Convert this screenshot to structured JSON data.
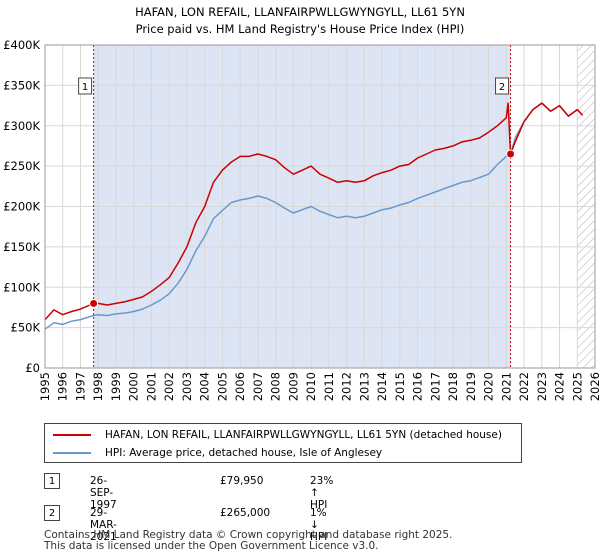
{
  "chart_data": {
    "type": "line",
    "title": "HAFAN, LON REFAIL, LLANFAIRPWLLGWYNGYLL, LL61 5YN",
    "subtitle": "Price paid vs. HM Land Registry's House Price Index (HPI)",
    "xlim": [
      1995,
      2026
    ],
    "ylim": [
      0,
      400000
    ],
    "x_ticks": [
      1995,
      1996,
      1997,
      1998,
      1999,
      2000,
      2001,
      2002,
      2003,
      2004,
      2005,
      2006,
      2007,
      2008,
      2009,
      2010,
      2011,
      2012,
      2013,
      2014,
      2015,
      2016,
      2017,
      2018,
      2019,
      2020,
      2021,
      2022,
      2023,
      2024,
      2025,
      2026
    ],
    "y_ticks": [
      0,
      50000,
      100000,
      150000,
      200000,
      250000,
      300000,
      350000,
      400000
    ],
    "y_tick_labels": [
      "£0",
      "£50K",
      "£100K",
      "£150K",
      "£200K",
      "£250K",
      "£300K",
      "£350K",
      "£400K"
    ],
    "grid": true,
    "shaded_span": [
      1997.74,
      2021.24
    ],
    "hatched_from": 2025.0,
    "series": [
      {
        "name": "HAFAN, LON REFAIL, LLANFAIRPWLLGWYNGYLL, LL61 5YN (detached house)",
        "color": "#cc0000",
        "x": [
          1995.0,
          1995.5,
          1996.0,
          1996.5,
          1997.0,
          1997.74,
          1998.0,
          1998.5,
          1999.0,
          1999.5,
          2000.0,
          2000.5,
          2001.0,
          2001.5,
          2002.0,
          2002.5,
          2003.0,
          2003.5,
          2004.0,
          2004.5,
          2005.0,
          2005.5,
          2006.0,
          2006.5,
          2007.0,
          2007.5,
          2008.0,
          2008.5,
          2009.0,
          2009.5,
          2010.0,
          2010.5,
          2011.0,
          2011.5,
          2012.0,
          2012.5,
          2013.0,
          2013.5,
          2014.0,
          2014.5,
          2015.0,
          2015.5,
          2016.0,
          2016.5,
          2017.0,
          2017.5,
          2018.0,
          2018.5,
          2019.0,
          2019.5,
          2020.0,
          2020.5,
          2021.0,
          2021.1,
          2021.24,
          2021.5,
          2022.0,
          2022.5,
          2023.0,
          2023.5,
          2024.0,
          2024.5,
          2025.0,
          2025.3
        ],
        "values": [
          60000,
          72000,
          66000,
          70000,
          73000,
          79950,
          80000,
          78000,
          80000,
          82000,
          85000,
          88000,
          95000,
          103000,
          112000,
          130000,
          150000,
          180000,
          200000,
          230000,
          245000,
          255000,
          262000,
          262000,
          265000,
          262000,
          258000,
          248000,
          240000,
          245000,
          250000,
          240000,
          235000,
          230000,
          232000,
          230000,
          232000,
          238000,
          242000,
          245000,
          250000,
          252000,
          260000,
          265000,
          270000,
          272000,
          275000,
          280000,
          282000,
          285000,
          292000,
          300000,
          310000,
          328000,
          265000,
          280000,
          305000,
          320000,
          328000,
          318000,
          325000,
          312000,
          320000,
          313000
        ]
      },
      {
        "name": "HPI: Average price, detached house, Isle of Anglesey",
        "color": "#6699cc",
        "x": [
          1995.0,
          1995.5,
          1996.0,
          1996.5,
          1997.0,
          1997.74,
          1998.0,
          1998.5,
          1999.0,
          1999.5,
          2000.0,
          2000.5,
          2001.0,
          2001.5,
          2002.0,
          2002.5,
          2003.0,
          2003.5,
          2004.0,
          2004.5,
          2005.0,
          2005.5,
          2006.0,
          2006.5,
          2007.0,
          2007.5,
          2008.0,
          2008.5,
          2009.0,
          2009.5,
          2010.0,
          2010.5,
          2011.0,
          2011.5,
          2012.0,
          2012.5,
          2013.0,
          2013.5,
          2014.0,
          2014.5,
          2015.0,
          2015.5,
          2016.0,
          2016.5,
          2017.0,
          2017.5,
          2018.0,
          2018.5,
          2019.0,
          2019.5,
          2020.0,
          2020.5,
          2021.0,
          2021.24,
          2021.5,
          2022.0,
          2022.5,
          2023.0,
          2023.5,
          2024.0,
          2024.5,
          2025.0,
          2025.3
        ],
        "values": [
          48000,
          56000,
          54000,
          58000,
          60000,
          65000,
          66000,
          65000,
          67000,
          68000,
          70000,
          73000,
          78000,
          84000,
          92000,
          105000,
          122000,
          145000,
          163000,
          185000,
          195000,
          205000,
          208000,
          210000,
          213000,
          210000,
          205000,
          198000,
          192000,
          196000,
          200000,
          194000,
          190000,
          186000,
          188000,
          186000,
          188000,
          192000,
          196000,
          198000,
          202000,
          205000,
          210000,
          214000,
          218000,
          222000,
          226000,
          230000,
          232000,
          236000,
          240000,
          252000,
          262000,
          265000,
          285000,
          305000,
          320000,
          328000,
          318000,
          325000,
          312000,
          320000,
          313000
        ]
      }
    ],
    "annotations": [
      {
        "label": "1",
        "x": 1997.74,
        "y": 79950
      },
      {
        "label": "2",
        "x": 2021.24,
        "y": 265000
      }
    ]
  },
  "legend": {
    "red_label": "HAFAN, LON REFAIL, LLANFAIRPWLLGWYNGYLL, LL61 5YN (detached house)",
    "blue_label": "HPI: Average price, detached house, Isle of Anglesey"
  },
  "transactions": [
    {
      "num": "1",
      "date": "26-SEP-1997",
      "price": "£79,950",
      "hpi": "23% ↑ HPI"
    },
    {
      "num": "2",
      "date": "29-MAR-2021",
      "price": "£265,000",
      "hpi": "1% ↓ HPI"
    }
  ],
  "footer": {
    "line1": "Contains HM Land Registry data © Crown copyright and database right 2025.",
    "line2": "This data is licensed under the Open Government Licence v3.0."
  }
}
